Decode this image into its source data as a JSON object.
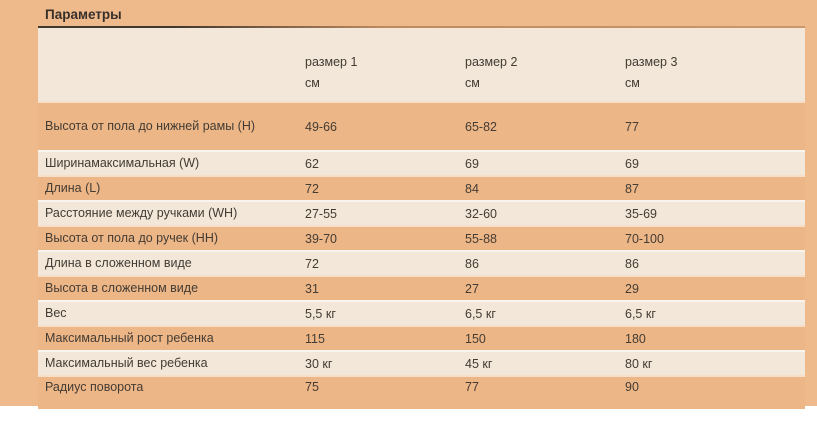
{
  "title": "Параметры",
  "colors": {
    "page_background": "#eeb98b",
    "row_light": "#f2e7d8",
    "row_dark": "#edb687",
    "text": "#433c34",
    "title_rule": "#42382e",
    "bottom_strip": "#ffffff"
  },
  "table": {
    "columns": [
      {
        "label": "",
        "unit": ""
      },
      {
        "label": "размер 1",
        "unit": "см"
      },
      {
        "label": "размер 2",
        "unit": "см"
      },
      {
        "label": "размер 3",
        "unit": "см"
      }
    ],
    "rows": [
      {
        "label": "Высота от пола до нижней рамы (H)",
        "values": [
          "49-66",
          "65-82",
          "77"
        ]
      },
      {
        "label": "Ширинамаксимальная (W)",
        "values": [
          "62",
          "69",
          "69"
        ]
      },
      {
        "label": "Длина (L)",
        "values": [
          "72",
          "84",
          "87"
        ]
      },
      {
        "label": "Расстояние между ручками (WH)",
        "values": [
          "27-55",
          "32-60",
          "35-69"
        ]
      },
      {
        "label": "Высота от пола до ручек (HH)",
        "values": [
          "39-70",
          "55-88",
          "70-100"
        ]
      },
      {
        "label": "Длина в сложенном виде",
        "values": [
          "72",
          "86",
          "86"
        ]
      },
      {
        "label": "Высота в сложенном виде",
        "values": [
          "31",
          "27",
          "29"
        ]
      },
      {
        "label": "Вес",
        "values": [
          "5,5 кг",
          "6,5 кг",
          "6,5 кг"
        ]
      },
      {
        "label": "Максимальный рост ребенка",
        "values": [
          "115",
          "150",
          "180"
        ]
      },
      {
        "label": "Максимальный вес ребенка",
        "values": [
          "30 кг",
          "45 кг",
          "80 кг"
        ]
      },
      {
        "label": "Радиус поворота",
        "values": [
          "75",
          "77",
          "90"
        ]
      }
    ]
  }
}
